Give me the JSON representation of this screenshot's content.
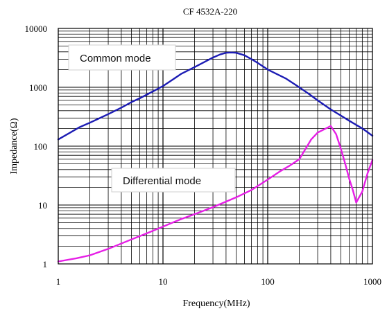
{
  "chart_data": {
    "type": "line",
    "title": "CF 4532A-220",
    "xlabel": "Frequency(MHz)",
    "ylabel": "Impedance(Ω)",
    "x_scale": "log",
    "y_scale": "log",
    "xlim": [
      1,
      1000
    ],
    "ylim": [
      1,
      10000
    ],
    "x_ticks": [
      "1",
      "10",
      "100",
      "1000"
    ],
    "y_ticks": [
      "1",
      "10",
      "100",
      "1000",
      "10000"
    ],
    "grid": true,
    "series": [
      {
        "name": "Common mode",
        "color": "#1c1cb4",
        "points": [
          [
            1,
            130
          ],
          [
            1.3,
            170
          ],
          [
            1.6,
            210
          ],
          [
            2,
            250
          ],
          [
            2.5,
            300
          ],
          [
            3,
            350
          ],
          [
            4,
            450
          ],
          [
            5,
            560
          ],
          [
            6,
            650
          ],
          [
            8,
            850
          ],
          [
            10,
            1050
          ],
          [
            12,
            1300
          ],
          [
            15,
            1700
          ],
          [
            20,
            2200
          ],
          [
            25,
            2700
          ],
          [
            30,
            3200
          ],
          [
            35,
            3600
          ],
          [
            40,
            3850
          ],
          [
            45,
            3900
          ],
          [
            50,
            3850
          ],
          [
            60,
            3500
          ],
          [
            70,
            3000
          ],
          [
            80,
            2600
          ],
          [
            100,
            2000
          ],
          [
            150,
            1400
          ],
          [
            200,
            1000
          ],
          [
            250,
            760
          ],
          [
            300,
            600
          ],
          [
            400,
            420
          ],
          [
            500,
            330
          ],
          [
            600,
            270
          ],
          [
            700,
            230
          ],
          [
            800,
            200
          ],
          [
            1000,
            150
          ]
        ]
      },
      {
        "name": "Differential mode",
        "color": "#e61ee6",
        "points": [
          [
            1,
            1.1
          ],
          [
            1.5,
            1.25
          ],
          [
            2,
            1.4
          ],
          [
            3,
            1.8
          ],
          [
            5,
            2.6
          ],
          [
            7,
            3.3
          ],
          [
            10,
            4.3
          ],
          [
            15,
            5.8
          ],
          [
            20,
            7.0
          ],
          [
            30,
            9.2
          ],
          [
            50,
            13.5
          ],
          [
            70,
            18
          ],
          [
            100,
            27
          ],
          [
            130,
            37
          ],
          [
            160,
            46
          ],
          [
            200,
            60
          ],
          [
            230,
            90
          ],
          [
            260,
            130
          ],
          [
            300,
            170
          ],
          [
            350,
            195
          ],
          [
            400,
            220
          ],
          [
            450,
            160
          ],
          [
            500,
            90
          ],
          [
            550,
            50
          ],
          [
            600,
            28
          ],
          [
            650,
            18
          ],
          [
            700,
            11
          ],
          [
            800,
            17
          ],
          [
            900,
            35
          ],
          [
            1000,
            58
          ]
        ]
      }
    ]
  }
}
